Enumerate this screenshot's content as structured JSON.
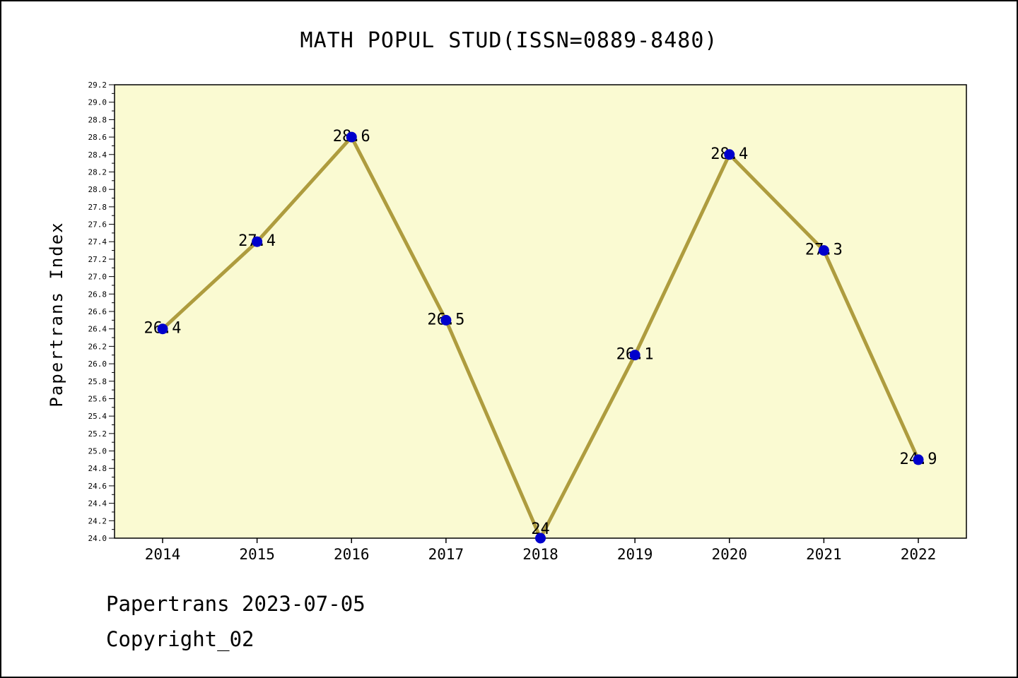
{
  "page": {
    "title": "MATH POPUL STUD(ISSN=0889-8480)",
    "footer_line1": "Papertrans 2023-07-05",
    "footer_line2": "Copyright_02"
  },
  "chart_data": {
    "type": "line",
    "title": "MATH POPUL STUD(ISSN=0889-8480)",
    "ylabel": "Papertrans Index",
    "xlabel": "",
    "categories": [
      "2014",
      "2015",
      "2016",
      "2017",
      "2018",
      "2019",
      "2020",
      "2021",
      "2022"
    ],
    "values": [
      26.4,
      27.4,
      28.6,
      26.5,
      24,
      26.1,
      28.4,
      27.3,
      24.9
    ],
    "point_labels": [
      "26.4",
      "27.4",
      "28.6",
      "26.5",
      "24",
      "26.1",
      "28.4",
      "27.3",
      "24.9"
    ],
    "ylim": [
      24.0,
      29.2
    ],
    "ytick_major": 0.2,
    "ytick_minor": 0.1,
    "grid": "off",
    "legend": "none",
    "colors": {
      "line": "#AE9C3E",
      "marker": "#0000CC",
      "plot_bg": "#FAFAD2",
      "frame": "#000000",
      "text": "#000000"
    }
  }
}
